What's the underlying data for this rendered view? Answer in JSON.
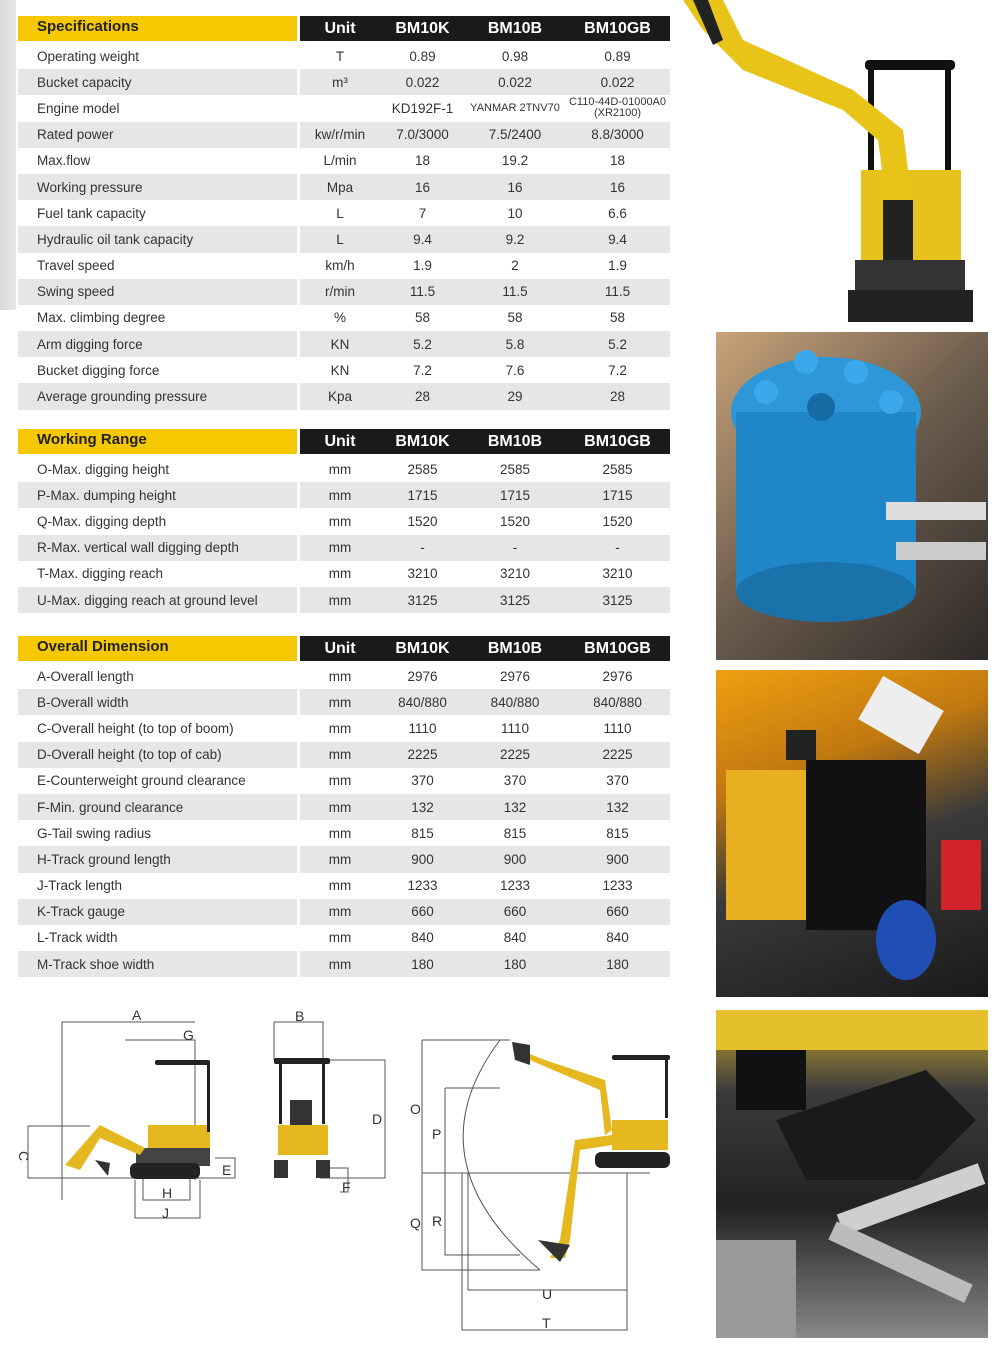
{
  "tables": [
    {
      "title": "Specifications",
      "unit_label": "Unit",
      "models": [
        "BM10K",
        "BM10B",
        "BM10GB"
      ],
      "rows": [
        [
          "Operating weight",
          "T",
          "0.89",
          "0.98",
          "0.89"
        ],
        [
          "Bucket capacity",
          "m³",
          "0.022",
          "0.022",
          "0.022"
        ],
        [
          "Engine model",
          "",
          "KD192F-1",
          "YANMAR 2TNV70",
          "C110-44D-01000A0 (XR2100)"
        ],
        [
          "Rated power",
          "kw/r/min",
          "7.0/3000",
          "7.5/2400",
          "8.8/3000"
        ],
        [
          "Max.flow",
          "L/min",
          "18",
          "19.2",
          "18"
        ],
        [
          "Working pressure",
          "Mpa",
          "16",
          "16",
          "16"
        ],
        [
          "Fuel tank capacity",
          "L",
          "7",
          "10",
          "6.6"
        ],
        [
          "Hydraulic oil tank capacity",
          "L",
          "9.4",
          "9.2",
          "9.4"
        ],
        [
          "Travel speed",
          "km/h",
          "1.9",
          "2",
          "1.9"
        ],
        [
          "Swing speed",
          "r/min",
          "11.5",
          "11.5",
          "11.5"
        ],
        [
          "Max. climbing degree",
          "%",
          "58",
          "58",
          "58"
        ],
        [
          "Arm digging force",
          "KN",
          "5.2",
          "5.8",
          "5.2"
        ],
        [
          "Bucket digging force",
          "KN",
          "7.2",
          "7.6",
          "7.2"
        ],
        [
          "Average grounding pressure",
          "Kpa",
          "28",
          "29",
          "28"
        ]
      ]
    },
    {
      "title": "Working Range",
      "unit_label": "Unit",
      "models": [
        "BM10K",
        "BM10B",
        "BM10GB"
      ],
      "rows": [
        [
          "O-Max. digging height",
          "mm",
          "2585",
          "2585",
          "2585"
        ],
        [
          "P-Max. dumping height",
          "mm",
          "1715",
          "1715",
          "1715"
        ],
        [
          "Q-Max. digging depth",
          "mm",
          "1520",
          "1520",
          "1520"
        ],
        [
          "R-Max. vertical wall digging depth",
          "mm",
          "-",
          "-",
          "-"
        ],
        [
          "T-Max. digging reach",
          "mm",
          "3210",
          "3210",
          "3210"
        ],
        [
          "U-Max. digging reach at ground level",
          "mm",
          "3125",
          "3125",
          "3125"
        ]
      ]
    },
    {
      "title": "Overall Dimension",
      "unit_label": "Unit",
      "models": [
        "BM10K",
        "BM10B",
        "BM10GB"
      ],
      "rows": [
        [
          "A-Overall length",
          "mm",
          "2976",
          "2976",
          "2976"
        ],
        [
          "B-Overall width",
          "mm",
          "840/880",
          "840/880",
          "840/880"
        ],
        [
          "C-Overall height (to top of boom)",
          "mm",
          "1110",
          "1110",
          "1110"
        ],
        [
          "D-Overall height (to top of cab)",
          "mm",
          "2225",
          "2225",
          "2225"
        ],
        [
          "E-Counterweight ground clearance",
          "mm",
          "370",
          "370",
          "370"
        ],
        [
          "F-Min. ground clearance",
          "mm",
          "132",
          "132",
          "132"
        ],
        [
          "G-Tail swing radius",
          "mm",
          "815",
          "815",
          "815"
        ],
        [
          "H-Track ground length",
          "mm",
          "900",
          "900",
          "900"
        ],
        [
          "J-Track length",
          "mm",
          "1233",
          "1233",
          "1233"
        ],
        [
          "K-Track gauge",
          "mm",
          "660",
          "660",
          "660"
        ],
        [
          "L-Track width",
          "mm",
          "840",
          "840",
          "840"
        ],
        [
          "M-Track shoe width",
          "mm",
          "180",
          "180",
          "180"
        ]
      ]
    }
  ],
  "diagram_labels": {
    "A": "A",
    "B": "B",
    "C": "C",
    "D": "D",
    "E": "E",
    "F": "F",
    "G": "G",
    "H": "H",
    "J": "J",
    "O": "O",
    "P": "P",
    "Q": "Q",
    "R": "R",
    "T": "T",
    "U": "U"
  },
  "colors": {
    "accent": "#f5c800",
    "header": "#1a1a1a",
    "row_alt": "#e6e6e6"
  }
}
